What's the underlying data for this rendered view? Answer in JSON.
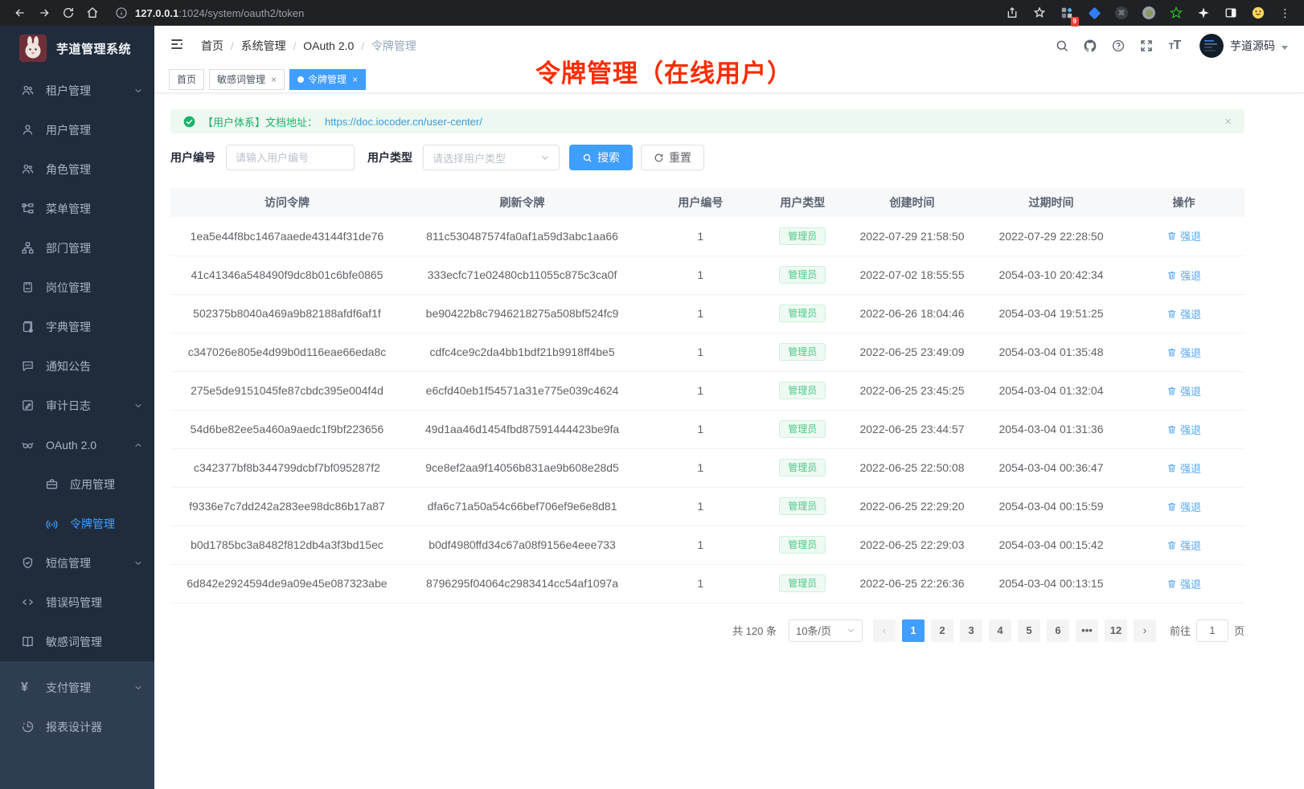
{
  "browser": {
    "url_host": "127.0.0.1",
    "url_rest": ":1024/system/oauth2/token",
    "extension_badge": "9"
  },
  "sidebar": {
    "app_title": "芋道管理系统",
    "items": [
      {
        "id": "tenant",
        "label": "租户管理",
        "icon": "users",
        "expandable": true
      },
      {
        "id": "user",
        "label": "用户管理",
        "icon": "user"
      },
      {
        "id": "role",
        "label": "角色管理",
        "icon": "users"
      },
      {
        "id": "menu",
        "label": "菜单管理",
        "icon": "tree"
      },
      {
        "id": "dept",
        "label": "部门管理",
        "icon": "org"
      },
      {
        "id": "post",
        "label": "岗位管理",
        "icon": "badge"
      },
      {
        "id": "dict",
        "label": "字典管理",
        "icon": "dict"
      },
      {
        "id": "notice",
        "label": "通知公告",
        "icon": "chat"
      },
      {
        "id": "audit-log",
        "label": "审计日志",
        "icon": "edit",
        "expandable": true
      },
      {
        "id": "oauth2",
        "label": "OAuth 2.0",
        "icon": "glasses",
        "expandable": true,
        "expanded": true
      },
      {
        "id": "oauth2-app",
        "label": "应用管理",
        "icon": "briefcase",
        "child": true
      },
      {
        "id": "oauth2-token",
        "label": "令牌管理",
        "icon": "signal",
        "child": true,
        "active": true
      },
      {
        "id": "sms",
        "label": "短信管理",
        "icon": "shield",
        "expandable": true
      },
      {
        "id": "error-code",
        "label": "错误码管理",
        "icon": "code"
      },
      {
        "id": "sensitive-word",
        "label": "敏感词管理",
        "icon": "book"
      },
      {
        "id": "pay",
        "label": "支付管理",
        "icon": "yen",
        "expandable": true,
        "section": "bottom"
      },
      {
        "id": "report-designer",
        "label": "报表设计器",
        "icon": "pie",
        "section": "bottom"
      }
    ]
  },
  "navbar": {
    "breadcrumb": [
      "首页",
      "系统管理",
      "OAuth 2.0",
      "令牌管理"
    ],
    "username": "芋道源码"
  },
  "tabs": [
    {
      "label": "首页",
      "closable": false,
      "active": false
    },
    {
      "label": "敏感词管理",
      "closable": true,
      "active": false
    },
    {
      "label": "令牌管理",
      "closable": true,
      "active": true
    }
  ],
  "annotation": "令牌管理（在线用户）",
  "alert": {
    "label": "【用户体系】文档地址：",
    "url": "https://doc.iocoder.cn/user-center/"
  },
  "filters": {
    "user_id_label": "用户编号",
    "user_id_placeholder": "请输入用户编号",
    "user_type_label": "用户类型",
    "user_type_placeholder": "请选择用户类型",
    "search_label": "搜索",
    "reset_label": "重置"
  },
  "table": {
    "headers": [
      "访问令牌",
      "刷新令牌",
      "用户编号",
      "用户类型",
      "创建时间",
      "过期时间",
      "操作"
    ],
    "action_label": "强退",
    "rows": [
      {
        "access_token": "1ea5e44f8bc1467aaede43144f31de76",
        "refresh_token": "811c530487574fa0af1a59d3abc1aa66",
        "user_id": "1",
        "user_type": "管理员",
        "created_at": "2022-07-29 21:58:50",
        "expires_at": "2022-07-29 22:28:50"
      },
      {
        "access_token": "41c41346a548490f9dc8b01c6bfe0865",
        "refresh_token": "333ecfc71e02480cb11055c875c3ca0f",
        "user_id": "1",
        "user_type": "管理员",
        "created_at": "2022-07-02 18:55:55",
        "expires_at": "2054-03-10 20:42:34"
      },
      {
        "access_token": "502375b8040a469a9b82188afdf6af1f",
        "refresh_token": "be90422b8c7946218275a508bf524fc9",
        "user_id": "1",
        "user_type": "管理员",
        "created_at": "2022-06-26 18:04:46",
        "expires_at": "2054-03-04 19:51:25"
      },
      {
        "access_token": "c347026e805e4d99b0d116eae66eda8c",
        "refresh_token": "cdfc4ce9c2da4bb1bdf21b9918ff4be5",
        "user_id": "1",
        "user_type": "管理员",
        "created_at": "2022-06-25 23:49:09",
        "expires_at": "2054-03-04 01:35:48"
      },
      {
        "access_token": "275e5de9151045fe87cbdc395e004f4d",
        "refresh_token": "e6cfd40eb1f54571a31e775e039c4624",
        "user_id": "1",
        "user_type": "管理员",
        "created_at": "2022-06-25 23:45:25",
        "expires_at": "2054-03-04 01:32:04"
      },
      {
        "access_token": "54d6be82ee5a460a9aedc1f9bf223656",
        "refresh_token": "49d1aa46d1454fbd87591444423be9fa",
        "user_id": "1",
        "user_type": "管理员",
        "created_at": "2022-06-25 23:44:57",
        "expires_at": "2054-03-04 01:31:36"
      },
      {
        "access_token": "c342377bf8b344799dcbf7bf095287f2",
        "refresh_token": "9ce8ef2aa9f14056b831ae9b608e28d5",
        "user_id": "1",
        "user_type": "管理员",
        "created_at": "2022-06-25 22:50:08",
        "expires_at": "2054-03-04 00:36:47"
      },
      {
        "access_token": "f9336e7c7dd242a283ee98dc86b17a87",
        "refresh_token": "dfa6c71a50a54c66bef706ef9e6e8d81",
        "user_id": "1",
        "user_type": "管理员",
        "created_at": "2022-06-25 22:29:20",
        "expires_at": "2054-03-04 00:15:59"
      },
      {
        "access_token": "b0d1785bc3a8482f812db4a3f3bd15ec",
        "refresh_token": "b0df4980ffd34c67a08f9156e4eee733",
        "user_id": "1",
        "user_type": "管理员",
        "created_at": "2022-06-25 22:29:03",
        "expires_at": "2054-03-04 00:15:42"
      },
      {
        "access_token": "6d842e2924594de9a09e45e087323abe",
        "refresh_token": "8796295f04064c2983414cc54af1097a",
        "user_id": "1",
        "user_type": "管理员",
        "created_at": "2022-06-25 22:26:36",
        "expires_at": "2054-03-04 00:13:15"
      }
    ]
  },
  "pagination": {
    "total_label": "共 120 条",
    "page_size": "10条/页",
    "pages": [
      "1",
      "2",
      "3",
      "4",
      "5",
      "6",
      "•••",
      "12"
    ],
    "active_page": "1",
    "goto_label": "前往",
    "goto_value": "1",
    "page_label": "页"
  },
  "colors": {
    "primary": "#409eff",
    "success_tag": "#4cc88a",
    "annotation_red": "#ff2b00",
    "sidebar_bg": "#202c3c"
  }
}
